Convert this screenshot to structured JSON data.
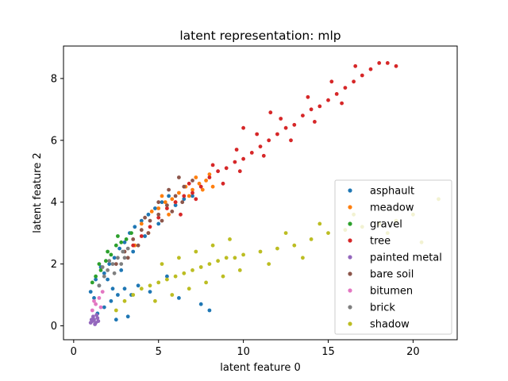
{
  "chart_data": {
    "type": "scatter",
    "title": "latent representation: mlp",
    "xlabel": "latent feature 0",
    "ylabel": "latent feature 2",
    "xlim": [
      -0.6,
      22.6
    ],
    "ylim": [
      -0.45,
      9.05
    ],
    "xticks": [
      0,
      5,
      10,
      15,
      20
    ],
    "yticks": [
      0,
      2,
      4,
      6,
      8
    ],
    "grid": false,
    "legend_position": "lower-right",
    "series": [
      {
        "name": "asphault",
        "color": "#1f77b4",
        "points": [
          [
            1.2,
            0.9
          ],
          [
            1.5,
            1.3
          ],
          [
            1.8,
            1.7
          ],
          [
            2.1,
            2.0
          ],
          [
            2.4,
            2.2
          ],
          [
            2.7,
            2.5
          ],
          [
            3.0,
            2.7
          ],
          [
            3.3,
            3.0
          ],
          [
            3.6,
            3.2
          ],
          [
            4.0,
            3.4
          ],
          [
            4.4,
            3.6
          ],
          [
            4.8,
            3.8
          ],
          [
            5.2,
            4.0
          ],
          [
            5.6,
            4.2
          ],
          [
            1.4,
            0.4
          ],
          [
            1.8,
            0.6
          ],
          [
            2.2,
            0.8
          ],
          [
            2.6,
            1.0
          ],
          [
            3.0,
            1.2
          ],
          [
            3.4,
            1.0
          ],
          [
            3.8,
            1.3
          ],
          [
            2.5,
            0.2
          ],
          [
            3.2,
            0.3
          ],
          [
            1.0,
            1.1
          ],
          [
            1.6,
            1.9
          ],
          [
            2.0,
            1.5
          ],
          [
            2.8,
            1.8
          ],
          [
            3.5,
            2.4
          ],
          [
            4.2,
            2.9
          ],
          [
            5.0,
            3.3
          ],
          [
            6.0,
            3.9
          ],
          [
            6.5,
            4.1
          ],
          [
            7.0,
            4.2
          ],
          [
            1.3,
            1.5
          ],
          [
            2.3,
            1.2
          ],
          [
            4.5,
            1.1
          ],
          [
            5.5,
            1.6
          ],
          [
            6.2,
            0.9
          ],
          [
            7.5,
            0.7
          ],
          [
            8.0,
            0.5
          ]
        ]
      },
      {
        "name": "meadow",
        "color": "#ff7f0e",
        "points": [
          [
            5.0,
            3.8
          ],
          [
            5.4,
            4.0
          ],
          [
            5.8,
            4.1
          ],
          [
            6.2,
            4.3
          ],
          [
            6.6,
            4.5
          ],
          [
            7.0,
            4.4
          ],
          [
            7.4,
            4.6
          ],
          [
            7.8,
            4.7
          ],
          [
            8.0,
            4.9
          ],
          [
            4.6,
            3.7
          ],
          [
            5.2,
            4.2
          ],
          [
            6.0,
            4.0
          ],
          [
            6.8,
            4.2
          ],
          [
            7.6,
            4.4
          ],
          [
            3.6,
            2.6
          ],
          [
            4.4,
            3.0
          ],
          [
            5.6,
            3.6
          ],
          [
            7.2,
            4.8
          ],
          [
            8.2,
            4.5
          ],
          [
            4.0,
            3.3
          ]
        ]
      },
      {
        "name": "gravel",
        "color": "#2ca02c",
        "points": [
          [
            1.3,
            1.6
          ],
          [
            1.6,
            1.8
          ],
          [
            1.9,
            2.1
          ],
          [
            2.2,
            2.3
          ],
          [
            2.5,
            2.6
          ],
          [
            2.8,
            2.7
          ],
          [
            3.1,
            2.8
          ],
          [
            1.1,
            1.4
          ],
          [
            1.5,
            2.0
          ],
          [
            2.0,
            2.4
          ],
          [
            2.6,
            2.9
          ],
          [
            3.4,
            3.0
          ]
        ]
      },
      {
        "name": "tree",
        "color": "#d62728",
        "points": [
          [
            3.5,
            2.6
          ],
          [
            4.0,
            2.9
          ],
          [
            4.5,
            3.2
          ],
          [
            5.0,
            3.5
          ],
          [
            5.5,
            3.8
          ],
          [
            6.0,
            4.0
          ],
          [
            6.5,
            4.2
          ],
          [
            7.0,
            4.3
          ],
          [
            7.5,
            4.5
          ],
          [
            8.0,
            4.8
          ],
          [
            8.5,
            5.0
          ],
          [
            9.0,
            5.1
          ],
          [
            9.5,
            5.3
          ],
          [
            10.0,
            5.4
          ],
          [
            10.5,
            5.6
          ],
          [
            11.0,
            5.8
          ],
          [
            11.5,
            6.0
          ],
          [
            12.0,
            6.2
          ],
          [
            12.5,
            6.4
          ],
          [
            13.0,
            6.5
          ],
          [
            13.5,
            6.8
          ],
          [
            14.0,
            7.0
          ],
          [
            14.5,
            7.1
          ],
          [
            15.0,
            7.3
          ],
          [
            15.5,
            7.5
          ],
          [
            16.0,
            7.7
          ],
          [
            16.5,
            7.9
          ],
          [
            17.0,
            8.1
          ],
          [
            17.5,
            8.3
          ],
          [
            18.0,
            8.5
          ],
          [
            18.5,
            8.5
          ],
          [
            19.0,
            8.4
          ],
          [
            6.3,
            3.6
          ],
          [
            7.2,
            4.1
          ],
          [
            8.8,
            4.6
          ],
          [
            9.8,
            5.0
          ],
          [
            11.2,
            5.5
          ],
          [
            12.8,
            6.0
          ],
          [
            14.2,
            6.6
          ],
          [
            15.8,
            7.2
          ],
          [
            6.8,
            4.6
          ],
          [
            8.2,
            5.2
          ],
          [
            9.6,
            5.7
          ],
          [
            10.8,
            6.2
          ],
          [
            12.2,
            6.7
          ],
          [
            13.8,
            7.4
          ],
          [
            15.2,
            7.9
          ],
          [
            16.6,
            8.4
          ],
          [
            10.0,
            6.4
          ],
          [
            11.6,
            6.9
          ]
        ]
      },
      {
        "name": "painted metal",
        "color": "#9467bd",
        "points": [
          [
            1.0,
            0.1
          ],
          [
            1.1,
            0.15
          ],
          [
            1.2,
            0.2
          ],
          [
            1.3,
            0.1
          ],
          [
            1.4,
            0.25
          ],
          [
            1.15,
            0.3
          ],
          [
            1.25,
            0.05
          ],
          [
            1.35,
            0.35
          ],
          [
            1.05,
            0.2
          ],
          [
            1.45,
            0.15
          ]
        ]
      },
      {
        "name": "bare soil",
        "color": "#8c564b",
        "points": [
          [
            2.5,
            2.0
          ],
          [
            3.0,
            2.4
          ],
          [
            3.5,
            2.8
          ],
          [
            4.0,
            3.1
          ],
          [
            4.5,
            3.4
          ],
          [
            5.0,
            3.6
          ],
          [
            5.5,
            3.9
          ],
          [
            6.0,
            4.2
          ],
          [
            6.5,
            4.5
          ],
          [
            7.0,
            4.7
          ],
          [
            3.2,
            2.2
          ],
          [
            3.8,
            2.6
          ],
          [
            4.4,
            3.0
          ],
          [
            5.2,
            3.4
          ],
          [
            5.8,
            3.7
          ],
          [
            6.4,
            4.0
          ],
          [
            4.2,
            3.5
          ],
          [
            5.0,
            4.0
          ],
          [
            5.6,
            4.4
          ],
          [
            6.2,
            4.8
          ]
        ]
      },
      {
        "name": "bitumen",
        "color": "#e377c2",
        "points": [
          [
            1.1,
            0.5
          ],
          [
            1.3,
            0.7
          ],
          [
            1.5,
            0.9
          ],
          [
            1.7,
            1.1
          ],
          [
            1.2,
            0.8
          ],
          [
            1.6,
            0.6
          ]
        ]
      },
      {
        "name": "brick",
        "color": "#7f7f7f",
        "points": [
          [
            1.5,
            1.3
          ],
          [
            1.8,
            1.6
          ],
          [
            2.0,
            1.8
          ],
          [
            2.3,
            2.0
          ],
          [
            2.6,
            2.2
          ],
          [
            2.9,
            2.4
          ],
          [
            3.2,
            2.5
          ],
          [
            1.7,
            1.9
          ],
          [
            2.1,
            2.1
          ],
          [
            2.4,
            1.7
          ],
          [
            2.8,
            2.0
          ],
          [
            3.0,
            2.2
          ]
        ]
      },
      {
        "name": "shadow",
        "color": "#bcbd22",
        "points": [
          [
            2.5,
            0.5
          ],
          [
            3.0,
            0.8
          ],
          [
            3.5,
            1.0
          ],
          [
            4.0,
            1.2
          ],
          [
            4.5,
            1.3
          ],
          [
            5.0,
            1.4
          ],
          [
            5.5,
            1.5
          ],
          [
            6.0,
            1.6
          ],
          [
            6.5,
            1.7
          ],
          [
            7.0,
            1.8
          ],
          [
            7.5,
            1.9
          ],
          [
            8.0,
            2.0
          ],
          [
            8.5,
            2.1
          ],
          [
            9.0,
            2.2
          ],
          [
            9.5,
            2.2
          ],
          [
            10.0,
            2.3
          ],
          [
            11.0,
            2.4
          ],
          [
            12.0,
            2.5
          ],
          [
            13.0,
            2.6
          ],
          [
            14.0,
            2.8
          ],
          [
            15.0,
            3.0
          ],
          [
            16.0,
            3.1
          ],
          [
            17.0,
            3.2
          ],
          [
            18.0,
            3.3
          ],
          [
            19.0,
            3.4
          ],
          [
            20.0,
            3.6
          ],
          [
            21.5,
            4.1
          ],
          [
            4.8,
            0.8
          ],
          [
            5.8,
            1.0
          ],
          [
            6.8,
            1.2
          ],
          [
            7.8,
            1.4
          ],
          [
            8.8,
            1.6
          ],
          [
            9.8,
            1.8
          ],
          [
            11.5,
            2.0
          ],
          [
            13.5,
            2.2
          ],
          [
            5.2,
            2.0
          ],
          [
            6.2,
            2.2
          ],
          [
            7.2,
            2.4
          ],
          [
            8.2,
            2.6
          ],
          [
            9.2,
            2.8
          ],
          [
            12.5,
            3.0
          ],
          [
            14.5,
            3.3
          ],
          [
            16.5,
            3.6
          ],
          [
            18.5,
            3.0
          ],
          [
            20.5,
            2.7
          ]
        ]
      }
    ]
  }
}
